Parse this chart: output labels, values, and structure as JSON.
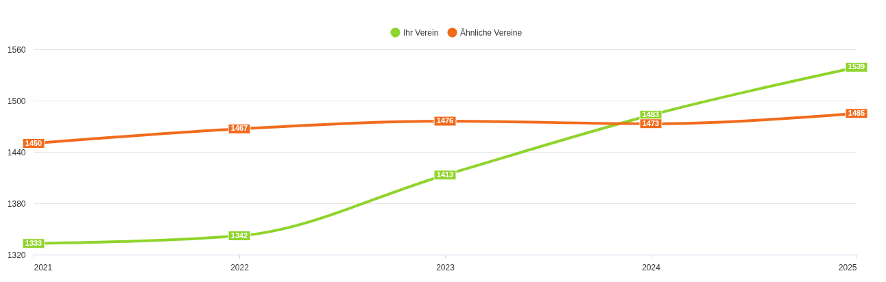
{
  "chart_data": {
    "type": "line",
    "x": [
      2021,
      2022,
      2023,
      2024,
      2025
    ],
    "xlim": [
      2021,
      2025
    ],
    "xticks": [
      2021,
      2022,
      2023,
      2024,
      2025
    ],
    "ylim": [
      1320,
      1560
    ],
    "yticks": [
      1320,
      1380,
      1440,
      1500,
      1560
    ],
    "grid": "y",
    "legend": "top",
    "data_labels": true,
    "marker": "square",
    "line_style": "solid",
    "series": [
      {
        "name": "Ihr Verein",
        "color": "#8fd42b",
        "values": [
          1333,
          1342,
          1413,
          1483,
          1539
        ]
      },
      {
        "name": "Ähnliche Vereine",
        "color": "#f26b1d",
        "values": [
          1450,
          1467,
          1476,
          1473,
          1485
        ]
      }
    ]
  }
}
